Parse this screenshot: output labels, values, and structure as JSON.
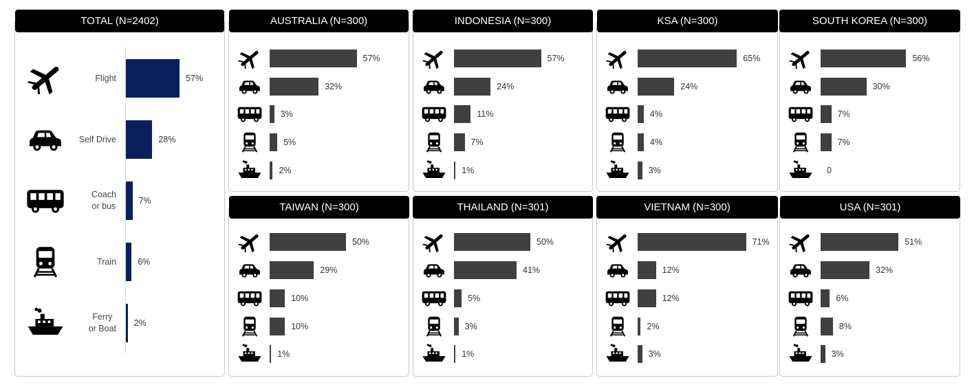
{
  "chart_data": [
    {
      "type": "bar",
      "orientation": "horizontal",
      "title": "TOTAL (N=2402)",
      "categories": [
        "Flight",
        "Self Drive",
        "Coach or bus",
        "Train",
        "Ferry or Boat"
      ],
      "category_labels": [
        [
          "Flight"
        ],
        [
          "Self Drive"
        ],
        [
          "Coach",
          "or bus"
        ],
        [
          "Train"
        ],
        [
          "Ferry",
          "or Boat"
        ]
      ],
      "values": [
        57,
        28,
        7,
        6,
        2
      ],
      "labels": [
        "57%",
        "28%",
        "7%",
        "6%",
        "2%"
      ],
      "color": "#0a1f5c"
    },
    {
      "type": "bar",
      "orientation": "horizontal",
      "title": "AUSTRALIA (N=300)",
      "categories": [
        "Flight",
        "Self Drive",
        "Coach or bus",
        "Train",
        "Ferry or Boat"
      ],
      "values": [
        57,
        32,
        3,
        5,
        2
      ],
      "labels": [
        "57%",
        "32%",
        "3%",
        "5%",
        "2%"
      ],
      "color": "#404040"
    },
    {
      "type": "bar",
      "orientation": "horizontal",
      "title": "INDONESIA (N=300)",
      "categories": [
        "Flight",
        "Self Drive",
        "Coach or bus",
        "Train",
        "Ferry or Boat"
      ],
      "values": [
        57,
        24,
        11,
        7,
        1
      ],
      "labels": [
        "57%",
        "24%",
        "11%",
        "7%",
        "1%"
      ],
      "color": "#404040"
    },
    {
      "type": "bar",
      "orientation": "horizontal",
      "title": "KSA (N=300)",
      "categories": [
        "Flight",
        "Self Drive",
        "Coach or bus",
        "Train",
        "Ferry or Boat"
      ],
      "values": [
        65,
        24,
        4,
        4,
        3
      ],
      "labels": [
        "65%",
        "24%",
        "4%",
        "4%",
        "3%"
      ],
      "color": "#404040"
    },
    {
      "type": "bar",
      "orientation": "horizontal",
      "title": "SOUTH KOREA (N=300)",
      "categories": [
        "Flight",
        "Self Drive",
        "Coach or bus",
        "Train",
        "Ferry or Boat"
      ],
      "values": [
        56,
        30,
        7,
        7,
        0
      ],
      "labels": [
        "56%",
        "30%",
        "7%",
        "7%",
        "0"
      ],
      "color": "#404040"
    },
    {
      "type": "bar",
      "orientation": "horizontal",
      "title": "TAIWAN (N=300)",
      "categories": [
        "Flight",
        "Self Drive",
        "Coach or bus",
        "Train",
        "Ferry or Boat"
      ],
      "values": [
        50,
        29,
        10,
        10,
        1
      ],
      "labels": [
        "50%",
        "29%",
        "10%",
        "10%",
        "1%"
      ],
      "color": "#404040"
    },
    {
      "type": "bar",
      "orientation": "horizontal",
      "title": "THAILAND (N=301)",
      "categories": [
        "Flight",
        "Self Drive",
        "Coach or bus",
        "Train",
        "Ferry or Boat"
      ],
      "values": [
        50,
        41,
        5,
        3,
        1
      ],
      "labels": [
        "50%",
        "41%",
        "5%",
        "3%",
        "1%"
      ],
      "color": "#404040"
    },
    {
      "type": "bar",
      "orientation": "horizontal",
      "title": "VIETNAM (N=300)",
      "categories": [
        "Flight",
        "Self Drive",
        "Coach or bus",
        "Train",
        "Ferry or Boat"
      ],
      "values": [
        71,
        12,
        12,
        2,
        3
      ],
      "labels": [
        "71%",
        "12%",
        "12%",
        "2%",
        "3%"
      ],
      "color": "#404040"
    },
    {
      "type": "bar",
      "orientation": "horizontal",
      "title": "USA (N=301)",
      "categories": [
        "Flight",
        "Self Drive",
        "Coach or bus",
        "Train",
        "Ferry or Boat"
      ],
      "values": [
        51,
        32,
        6,
        8,
        3
      ],
      "labels": [
        "51%",
        "32%",
        "6%",
        "8%",
        "3%"
      ],
      "color": "#404040"
    }
  ],
  "icons": [
    "plane-icon",
    "car-icon",
    "bus-icon",
    "train-icon",
    "ferry-icon"
  ]
}
